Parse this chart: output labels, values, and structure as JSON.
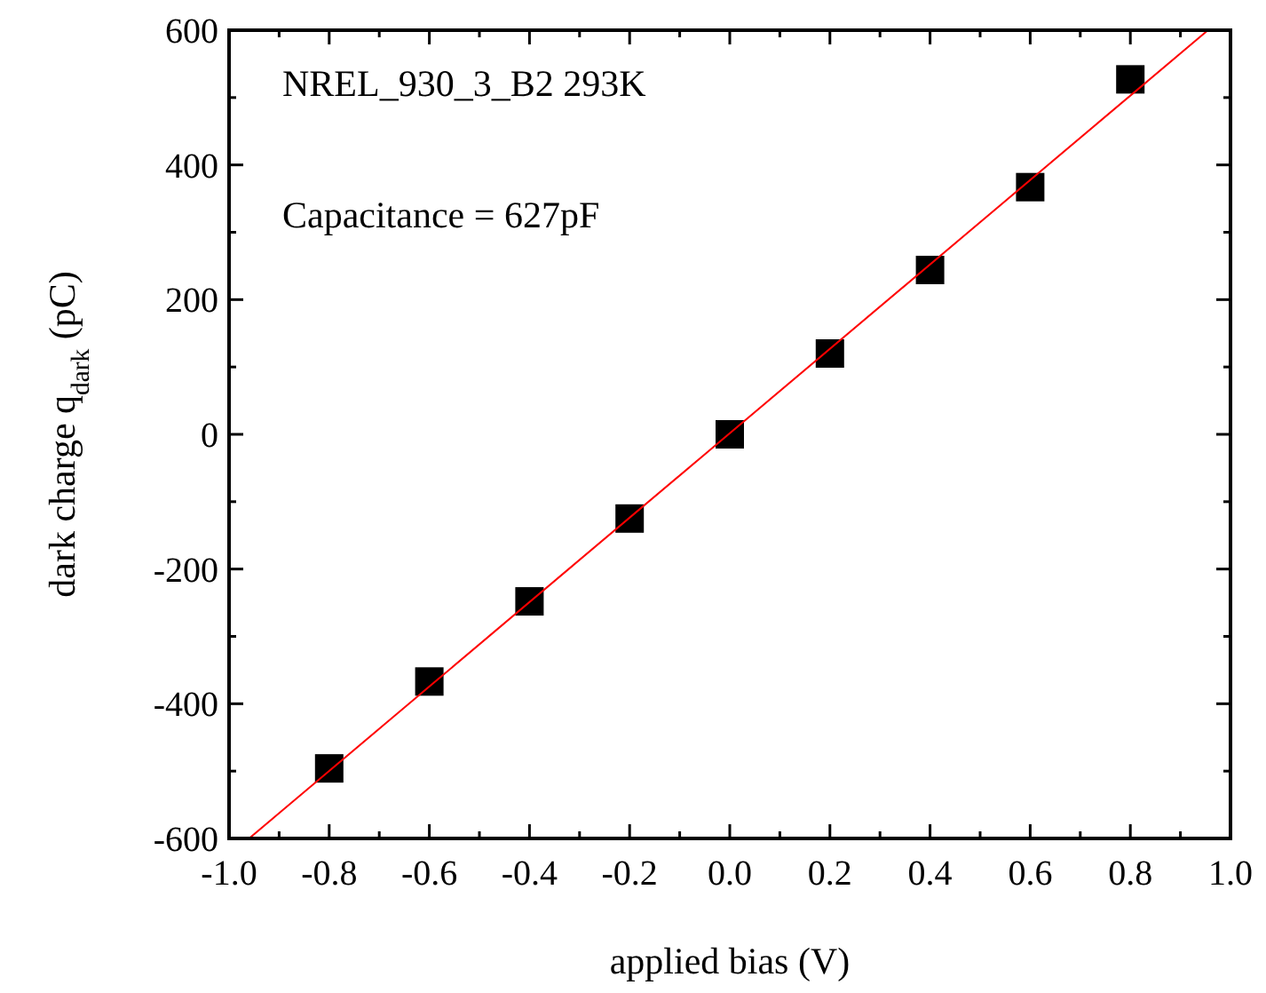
{
  "chart_data": {
    "type": "scatter",
    "xlabel": "applied bias (V)",
    "ylabel": "dark charge q$_{dark}$ (pC)",
    "annotations": [
      "NREL_930_3_B2 293K",
      "Capacitance = 627pF"
    ],
    "xlim": [
      -1,
      1
    ],
    "xticks": [
      {
        "value": -1,
        "label": "-1.0"
      },
      -0.8,
      -0.6,
      -0.4,
      -0.2,
      {
        "value": 0,
        "label": "0.0"
      },
      0.2,
      0.4,
      0.6,
      0.8,
      {
        "value": 1,
        "label": "1.0"
      }
    ],
    "ylim": [
      -600,
      600
    ],
    "yticks": [
      -600,
      -400,
      -200,
      0,
      200,
      400,
      600
    ],
    "grid": false,
    "marker": "square",
    "series": [
      {
        "color": "#000000",
        "x": [
          -0.8,
          -0.6,
          -0.4,
          -0.2,
          0,
          0.2,
          0.4,
          0.6,
          0.8
        ],
        "values": [
          -496,
          -367,
          -248,
          -125,
          0,
          120,
          244,
          367,
          527
        ]
      },
      {
        "type": "line",
        "color": "#ff0000",
        "x": [
          -0.96,
          0.955
        ],
        "values": [
          -600,
          600
        ],
        "marker": "none",
        "line_style": "solid"
      }
    ]
  }
}
